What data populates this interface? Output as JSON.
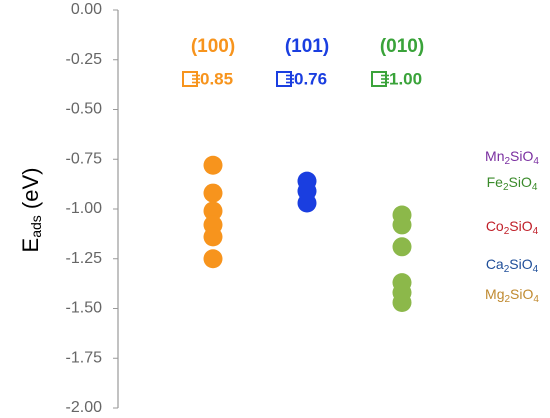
{
  "chart_data": {
    "type": "strip",
    "y_label": {
      "main": "E",
      "sub": "ads",
      "unit": "(eV)"
    },
    "ylim": [
      -2,
      0
    ],
    "yticks": [
      {
        "value": 0,
        "label": "0.00"
      },
      {
        "value": -0.25,
        "label": "-0.25"
      },
      {
        "value": -0.5,
        "label": "-0.50"
      },
      {
        "value": -0.75,
        "label": "-0.75"
      },
      {
        "value": -1,
        "label": "-1.00"
      },
      {
        "value": -1.25,
        "label": "-1.25"
      },
      {
        "value": -1.5,
        "label": "-1.50"
      },
      {
        "value": -1.75,
        "label": "-1.75"
      },
      {
        "value": -2,
        "label": "-2.00"
      }
    ],
    "series": [
      {
        "name": "(100)",
        "color": "#f7941d",
        "badge": "0.85",
        "values": [
          -0.78,
          -0.92,
          -1.01,
          -1.08,
          -1.14,
          -1.25
        ]
      },
      {
        "name": "(101)",
        "color": "#1a3ee0",
        "badge": "0.76",
        "values": [
          -0.86,
          -0.91,
          -0.97
        ]
      },
      {
        "name": "(010)",
        "color": "#8cb84a",
        "badge": "1.00",
        "values": [
          -1.03,
          -1.08,
          -1.19,
          -1.37,
          -1.42,
          -1.47
        ]
      }
    ],
    "header_colors": [
      "#f7941d",
      "#1a3ee0",
      "#3aa33a"
    ],
    "materials": [
      {
        "name": "Mn",
        "n1": "2",
        "mid": "SiO",
        "n2": "4",
        "color": "#7a2fa0"
      },
      {
        "name": "Fe",
        "n1": "2",
        "mid": "SiO",
        "n2": "4",
        "color": "#3a8a2a"
      },
      {
        "name": "Co",
        "n1": "2",
        "mid": "SiO",
        "n2": "4",
        "color": "#c0202a"
      },
      {
        "name": "Ca",
        "n1": "2",
        "mid": "SiO",
        "n2": "4",
        "color": "#1f4e99"
      },
      {
        "name": "Mg",
        "n1": "2",
        "mid": "SiO",
        "n2": "4",
        "color": "#c08a30"
      }
    ]
  }
}
